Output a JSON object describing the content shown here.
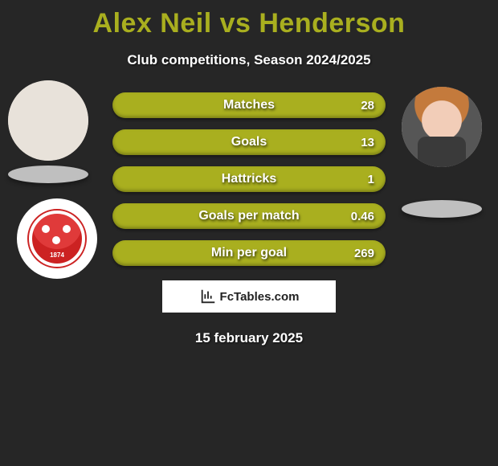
{
  "title_text": "Alex Neil vs Henderson",
  "title_color": "#a9af1f",
  "subtitle": "Club competitions, Season 2024/2025",
  "crest_year": "1874",
  "bars": {
    "bar_color": "#a9af1f",
    "track_color": "#3a3a3a",
    "width_pct": [
      100,
      100,
      100,
      100,
      100
    ],
    "items": [
      {
        "label": "Matches",
        "value": "28"
      },
      {
        "label": "Goals",
        "value": "13"
      },
      {
        "label": "Hattricks",
        "value": "1"
      },
      {
        "label": "Goals per match",
        "value": "0.46"
      },
      {
        "label": "Min per goal",
        "value": "269"
      }
    ]
  },
  "attribution": "FcTables.com",
  "date_text": "15 february 2025"
}
